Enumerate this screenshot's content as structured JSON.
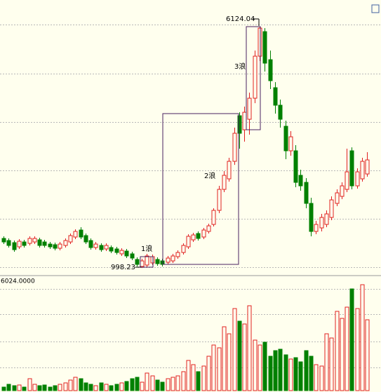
{
  "chart_data": {
    "type": "candlestick",
    "ylim": [
      850,
      6700
    ],
    "yticks": [
      1014,
      2044,
      3073,
      4103,
      5132,
      6177
    ],
    "vol_ylim": [
      0,
      6024
    ],
    "vol_yticks": [
      1266,
      2686,
      4182,
      5564
    ],
    "vol_top_label": "6024.0000",
    "up_color": "#e02020",
    "down_color": "#008000",
    "high_label": "6124.04",
    "low_label": "998.23",
    "waves": [
      "1浪",
      "2浪",
      "3浪"
    ],
    "open": [
      1626,
      1581,
      1536,
      1447,
      1551,
      1521,
      1551,
      1596,
      1551,
      1506,
      1492,
      1417,
      1477,
      1551,
      1656,
      1805,
      1686,
      1581,
      1432,
      1477,
      1402,
      1432,
      1402,
      1298,
      1357,
      1298,
      1178,
      1029,
      1059,
      1104,
      1178,
      1148,
      1119,
      1148,
      1238,
      1327,
      1447,
      1596,
      1730,
      1656,
      1775,
      1924,
      2223,
      2670,
      2894,
      3267,
      4237,
      3938,
      4162,
      4610,
      5505,
      6027,
      5430,
      4834,
      4461,
      4013,
      3491,
      3491,
      2969,
      2819,
      2372,
      1775,
      1850,
      1924,
      2073,
      2372,
      2521,
      2670,
      3491,
      2745,
      2894,
      2998
    ],
    "high": [
      1671,
      1626,
      1581,
      1611,
      1596,
      1671,
      1671,
      1641,
      1596,
      1551,
      1536,
      1551,
      1626,
      1730,
      1820,
      1865,
      1730,
      1626,
      1551,
      1521,
      1521,
      1477,
      1447,
      1417,
      1402,
      1342,
      1223,
      1193,
      1298,
      1283,
      1223,
      1193,
      1253,
      1298,
      1372,
      1521,
      1715,
      1745,
      1775,
      1850,
      1939,
      2267,
      2745,
      3058,
      3342,
      3983,
      4311,
      4431,
      4729,
      5624,
      6124.04,
      6102,
      5624,
      4953,
      4580,
      4132,
      3909,
      3610,
      3088,
      2909,
      2491,
      1999,
      2148,
      2223,
      2521,
      2670,
      2819,
      3536,
      3565,
      3118,
      3342,
      3461
    ],
    "low": [
      1506,
      1432,
      1342,
      1402,
      1432,
      1477,
      1506,
      1432,
      1432,
      1402,
      1372,
      1372,
      1432,
      1506,
      1611,
      1611,
      1506,
      1387,
      1387,
      1342,
      1357,
      1313,
      1283,
      1253,
      1208,
      1163,
      1029,
      998.23,
      1014,
      1059,
      1044,
      1029,
      1074,
      1104,
      1193,
      1283,
      1402,
      1551,
      1581,
      1611,
      1730,
      1880,
      2163,
      2611,
      2834,
      3192,
      3536,
      3685,
      3834,
      4505,
      5401,
      5177,
      4804,
      4282,
      3983,
      3312,
      3386,
      2715,
      2640,
      2267,
      1671,
      1715,
      1775,
      1865,
      2014,
      2312,
      2461,
      2611,
      2670,
      2685,
      2834,
      2939
    ],
    "close": [
      1551,
      1477,
      1387,
      1566,
      1477,
      1626,
      1626,
      1477,
      1477,
      1447,
      1417,
      1506,
      1581,
      1686,
      1775,
      1656,
      1551,
      1432,
      1506,
      1387,
      1477,
      1357,
      1327,
      1372,
      1253,
      1208,
      1074,
      1148,
      1253,
      1238,
      1089,
      1074,
      1208,
      1253,
      1327,
      1477,
      1671,
      1700,
      1626,
      1805,
      1894,
      2223,
      2670,
      2969,
      3267,
      3864,
      3864,
      4311,
      4610,
      5505,
      6102,
      5356,
      4983,
      4461,
      4162,
      3491,
      3789,
      2819,
      2745,
      2372,
      1775,
      1924,
      2073,
      2148,
      2446,
      2596,
      2745,
      3043,
      2745,
      3043,
      3267,
      3297
    ],
    "volume": [
      192,
      345,
      269,
      307,
      192,
      652,
      345,
      269,
      307,
      192,
      269,
      345,
      422,
      576,
      729,
      652,
      422,
      345,
      269,
      422,
      345,
      269,
      345,
      422,
      499,
      652,
      729,
      460,
      959,
      806,
      576,
      460,
      652,
      729,
      806,
      1036,
      1650,
      1420,
      1036,
      1343,
      1880,
      2494,
      2341,
      3492,
      3108,
      4489,
      3799,
      3645,
      4643,
      2763,
      2494,
      2648,
      1880,
      2187,
      2264,
      1957,
      1727,
      1803,
      1573,
      2187,
      1880,
      1420,
      1343,
      3108,
      2878,
      4336,
      3952,
      4566,
      5564,
      4489,
      5794,
      3875
    ]
  }
}
